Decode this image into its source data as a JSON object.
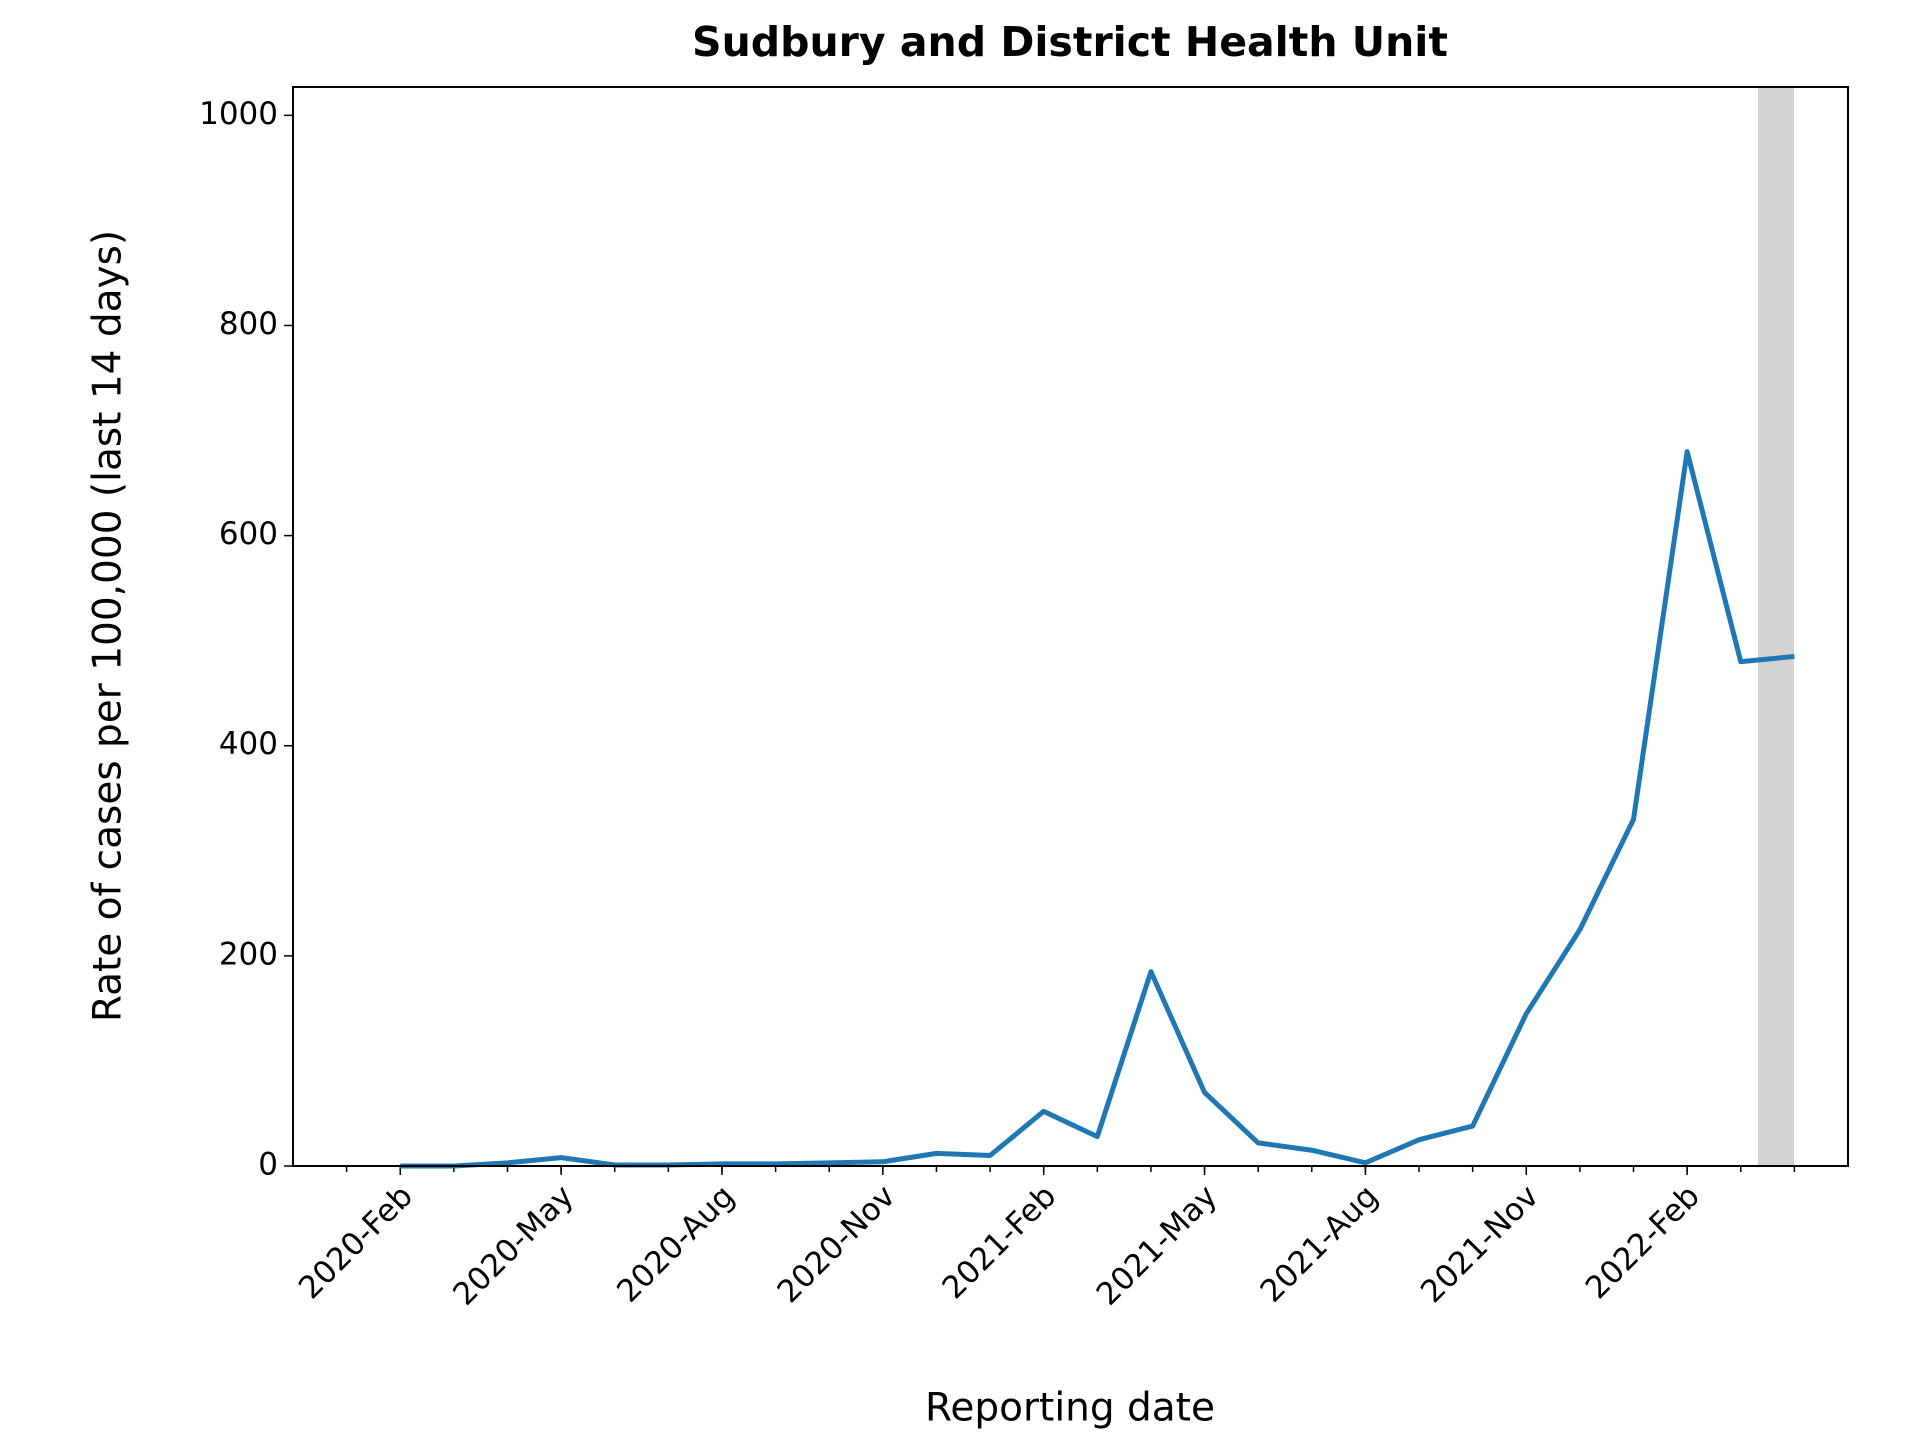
{
  "chart_data": {
    "type": "line",
    "title": "Sudbury and District Health Unit",
    "xlabel": "Reporting date",
    "ylabel": "Rate of cases per 100,000 (last 14 days)",
    "x": [
      "2020-02",
      "2020-03",
      "2020-04",
      "2020-05",
      "2020-06",
      "2020-07",
      "2020-08",
      "2020-09",
      "2020-10",
      "2020-11",
      "2020-12",
      "2021-01",
      "2021-02",
      "2021-03",
      "2021-04",
      "2021-05",
      "2021-06",
      "2021-07",
      "2021-08",
      "2021-09",
      "2021-10",
      "2021-11",
      "2021-12",
      "2022-01",
      "2022-02",
      "2022-03",
      "2022-04"
    ],
    "series": [
      {
        "name": "Rate of cases",
        "color": "#1f77b4",
        "values": [
          0,
          0,
          3,
          8,
          1,
          1,
          2,
          2,
          3,
          4,
          12,
          10,
          52,
          28,
          185,
          70,
          22,
          15,
          3,
          25,
          38,
          145,
          225,
          330,
          680,
          480,
          485
        ]
      }
    ],
    "xlim": [
      "2019-12",
      "2022-05"
    ],
    "xticks": [
      {
        "value": "2020-02",
        "label": "2020-Feb"
      },
      {
        "value": "2020-05",
        "label": "2020-May"
      },
      {
        "value": "2020-08",
        "label": "2020-Aug"
      },
      {
        "value": "2020-11",
        "label": "2020-Nov"
      },
      {
        "value": "2021-02",
        "label": "2021-Feb"
      },
      {
        "value": "2021-05",
        "label": "2021-May"
      },
      {
        "value": "2021-08",
        "label": "2021-Aug"
      },
      {
        "value": "2021-11",
        "label": "2021-Nov"
      },
      {
        "value": "2022-02",
        "label": "2022-Feb"
      }
    ],
    "ylim": [
      0,
      1027
    ],
    "yticks": [
      0,
      200,
      400,
      600,
      800,
      1000
    ]
  }
}
